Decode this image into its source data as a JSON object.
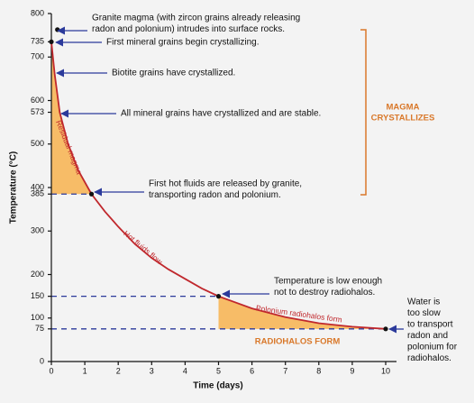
{
  "chart_data": {
    "type": "line",
    "x_label": "Time (days)",
    "y_label": "Temperature (°C)",
    "xlim": [
      0,
      10
    ],
    "ylim": [
      0,
      800
    ],
    "xticks": [
      0,
      1,
      2,
      3,
      4,
      5,
      6,
      7,
      8,
      9,
      10
    ],
    "yticks": [
      0,
      75,
      100,
      150,
      200,
      300,
      385,
      400,
      500,
      573,
      600,
      700,
      735,
      800
    ],
    "series": [
      {
        "color": "#c0282d",
        "x": [
          0,
          0.1,
          0.25,
          0.5,
          0.8,
          1.2,
          1.6,
          2,
          2.5,
          3,
          3.5,
          4,
          4.5,
          5,
          6,
          7,
          8,
          9,
          10
        ],
        "values": [
          735,
          660,
          573,
          500,
          440,
          385,
          345,
          310,
          270,
          238,
          212,
          190,
          168,
          150,
          122,
          102,
          88,
          80,
          75
        ]
      }
    ],
    "points": [
      {
        "x": 0.1,
        "y": 763
      },
      {
        "x": 0,
        "y": 735
      },
      {
        "x": 1.2,
        "y": 385
      },
      {
        "x": 5,
        "y": 150
      },
      {
        "x": 10,
        "y": 75
      }
    ],
    "shaded": [
      {
        "x": [
          0,
          1.2
        ],
        "floor": 385
      },
      {
        "x": [
          5,
          10
        ],
        "floor": 75
      }
    ],
    "shade_color": "#f7b24d",
    "annotations": [
      {
        "lines": [
          "Granite magma (with zircon grains already releasing",
          "radon and polonium) intrudes into surface rocks."
        ]
      },
      {
        "lines": [
          "First mineral grains begin crystallizing."
        ]
      },
      {
        "lines": [
          "Biotite grains have crystallized."
        ]
      },
      {
        "lines": [
          "All mineral grains have crystallized and are stable."
        ]
      },
      {
        "lines": [
          "First hot fluids are released by granite,",
          "transporting radon and polonium."
        ]
      },
      {
        "lines": [
          "Temperature is low enough",
          "not to destroy radiohalos."
        ]
      },
      {
        "lines": [
          "Water is",
          "too slow",
          "to transport",
          "radon and",
          "polonium for",
          "radiohalos."
        ]
      }
    ],
    "curve_labels": [
      "Residual magma",
      "Hot fluids flow",
      "Polonium radiohalos form"
    ],
    "phase_labels": [
      {
        "lines": [
          "MAGMA",
          "CRYSTALLIZES"
        ]
      },
      {
        "lines": [
          "RADIOHALOS FORM"
        ]
      }
    ]
  }
}
